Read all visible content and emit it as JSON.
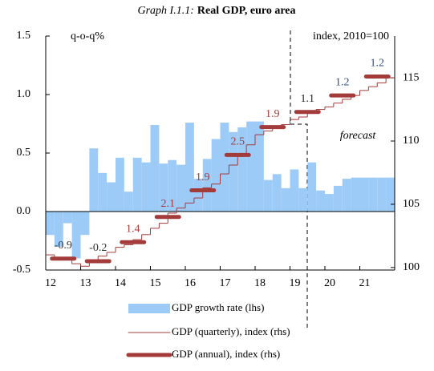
{
  "chart_data": {
    "type": "bar",
    "title_prefix": "Graph I.1.1:",
    "title": "Real GDP, euro area",
    "y_label": "q-o-q%",
    "y2_label": "index, 2010=100",
    "annotation": "forecast",
    "x": [
      2012,
      2012.25,
      2012.5,
      2012.75,
      2013,
      2013.25,
      2013.5,
      2013.75,
      2014,
      2014.25,
      2014.5,
      2014.75,
      2015,
      2015.25,
      2015.5,
      2015.75,
      2016,
      2016.25,
      2016.5,
      2016.75,
      2017,
      2017.25,
      2017.5,
      2017.75,
      2018,
      2018.25,
      2018.5,
      2018.75,
      2019,
      2019.25,
      2019.5,
      2019.75,
      2020,
      2020.25,
      2020.5,
      2020.75,
      2021,
      2021.25,
      2021.5,
      2021.75
    ],
    "xlim": [
      2012,
      2022
    ],
    "xticks": [
      {
        "value": 2012,
        "label": "12"
      },
      {
        "value": 2013,
        "label": "13"
      },
      {
        "value": 2014,
        "label": "14"
      },
      {
        "value": 2015,
        "label": "15"
      },
      {
        "value": 2016,
        "label": "16"
      },
      {
        "value": 2017,
        "label": "17"
      },
      {
        "value": 2018,
        "label": "18"
      },
      {
        "value": 2019,
        "label": "19"
      },
      {
        "value": 2020,
        "label": "20"
      },
      {
        "value": 2021,
        "label": "21"
      }
    ],
    "ylim": [
      -0.5,
      1.5
    ],
    "yticks": [
      -0.5,
      {
        "value": 0,
        "label": "0.0"
      },
      0.5,
      {
        "value": 1,
        "label": "1.0"
      },
      1.5
    ],
    "y2lim": [
      99.8,
      118.3
    ],
    "y2ticks": [
      100,
      105,
      110,
      115
    ],
    "series": [
      {
        "name": "GDP growth rate (lhs)",
        "type": "bar",
        "color": "#9dcbf7",
        "values": [
          -0.2,
          -0.3,
          -0.1,
          -0.4,
          -0.2,
          0.54,
          0.33,
          0.25,
          0.46,
          0.17,
          0.46,
          0.42,
          0.74,
          0.41,
          0.44,
          0.4,
          0.76,
          0.28,
          0.45,
          0.62,
          0.76,
          0.68,
          0.72,
          0.77,
          0.77,
          0.27,
          0.32,
          0.2,
          0.36,
          0.2,
          0.42,
          0.18,
          0.15,
          0.22,
          0.28,
          0.29,
          0.29,
          0.29,
          0.29,
          0.29
        ]
      },
      {
        "name": "GDP (quarterly), index (rhs)",
        "type": "step",
        "axis": "y2",
        "color": "#a33b3b",
        "values": [
          101.0,
          100.8,
          100.7,
          100.3,
          100.1,
          100.6,
          100.9,
          101.2,
          101.6,
          101.8,
          102.2,
          102.6,
          103.1,
          103.5,
          104.3,
          104.7,
          105.1,
          105.5,
          106.3,
          106.6,
          107.4,
          108.1,
          108.9,
          109.7,
          110.5,
          110.8,
          111.1,
          111.3,
          111.7,
          111.9,
          112.3,
          112.5,
          112.7,
          113.0,
          113.3,
          113.6,
          114.0,
          114.3,
          114.6,
          115.0
        ]
      },
      {
        "name": "GDP (annual), index (rhs)",
        "type": "annual",
        "axis": "y2",
        "color": "#a33b3b",
        "x": [
          2012.5,
          2013.5,
          2014.5,
          2015.5,
          2016.5,
          2017.5,
          2018.5,
          2019.5,
          2020.5,
          2021.5
        ],
        "values": [
          100.7,
          100.5,
          102.0,
          104.0,
          106.1,
          108.9,
          111.1,
          112.3,
          113.6,
          115.1
        ],
        "growth": [
          -0.9,
          -0.2,
          1.4,
          2.1,
          1.9,
          2.5,
          1.9,
          1.1,
          1.2,
          1.2
        ],
        "growth_colors": [
          "#333333",
          "#333333",
          "#a33b3b",
          "#a33b3b",
          "#a33b3b",
          "#a33b3b",
          "#a33b3b",
          "#222222",
          "#2f4f7f",
          "#2f4f7f"
        ]
      }
    ]
  }
}
